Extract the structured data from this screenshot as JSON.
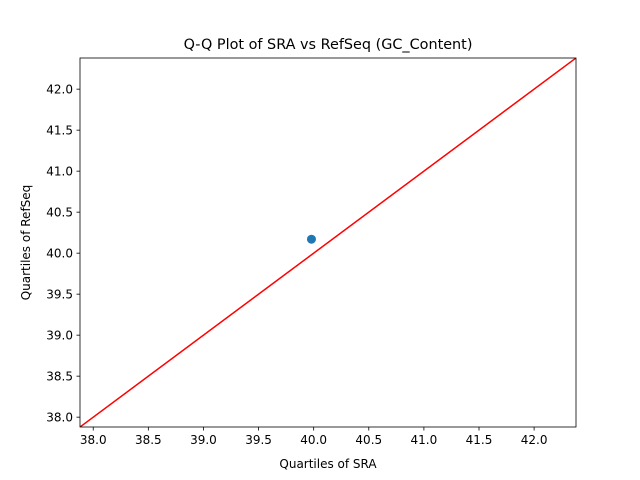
{
  "chart_data": {
    "type": "scatter",
    "title": "Q-Q Plot of SRA vs RefSeq (GC_Content)",
    "xlabel": "Quartiles of SRA",
    "ylabel": "Quartiles of RefSeq",
    "xlim": [
      37.88,
      42.38
    ],
    "ylim": [
      37.88,
      42.38
    ],
    "xticks": [
      38.0,
      38.5,
      39.0,
      39.5,
      40.0,
      40.5,
      41.0,
      41.5,
      42.0
    ],
    "yticks": [
      38.0,
      38.5,
      39.0,
      39.5,
      40.0,
      40.5,
      41.0,
      41.5,
      42.0
    ],
    "points": [
      {
        "x": 39.98,
        "y": 40.17
      }
    ],
    "reference_line": {
      "type": "y = x",
      "color": "#ff0000"
    },
    "point_color": "#1f77b4",
    "grid": false
  }
}
